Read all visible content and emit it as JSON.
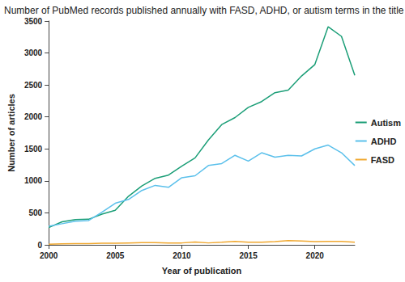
{
  "chart_data": {
    "type": "line",
    "title": "Number of PubMed records published annually with FASD, ADHD, or autism terms in the title",
    "x_label": "Year of publication",
    "y_label": "Number of articles",
    "x": [
      2000,
      2001,
      2002,
      2003,
      2004,
      2005,
      2006,
      2007,
      2008,
      2009,
      2010,
      2011,
      2012,
      2013,
      2014,
      2015,
      2016,
      2017,
      2018,
      2019,
      2020,
      2021,
      2022,
      2023
    ],
    "series": [
      {
        "name": "Autism",
        "color": "#1b9e77",
        "values": [
          270,
          360,
          395,
          400,
          480,
          540,
          760,
          920,
          1040,
          1090,
          1230,
          1360,
          1640,
          1880,
          1990,
          2150,
          2240,
          2380,
          2420,
          2640,
          2820,
          3410,
          3260,
          2650
        ]
      },
      {
        "name": "ADHD",
        "color": "#5bc0eb",
        "values": [
          290,
          330,
          370,
          380,
          510,
          650,
          710,
          850,
          930,
          900,
          1050,
          1080,
          1240,
          1270,
          1400,
          1310,
          1440,
          1370,
          1400,
          1390,
          1500,
          1560,
          1440,
          1240
        ]
      },
      {
        "name": "FASD",
        "color": "#f0a830",
        "values": [
          10,
          15,
          20,
          20,
          25,
          25,
          30,
          35,
          35,
          30,
          30,
          45,
          30,
          40,
          55,
          40,
          40,
          50,
          65,
          60,
          50,
          55,
          55,
          40
        ]
      }
    ],
    "xlim": [
      2000,
      2023
    ],
    "xticks": [
      2000,
      2005,
      2010,
      2015,
      2020
    ],
    "ylim": [
      0,
      3500
    ],
    "yticks": [
      0,
      500,
      1000,
      1500,
      2000,
      2500,
      3000,
      3500
    ],
    "grid": false,
    "legend": "right"
  }
}
